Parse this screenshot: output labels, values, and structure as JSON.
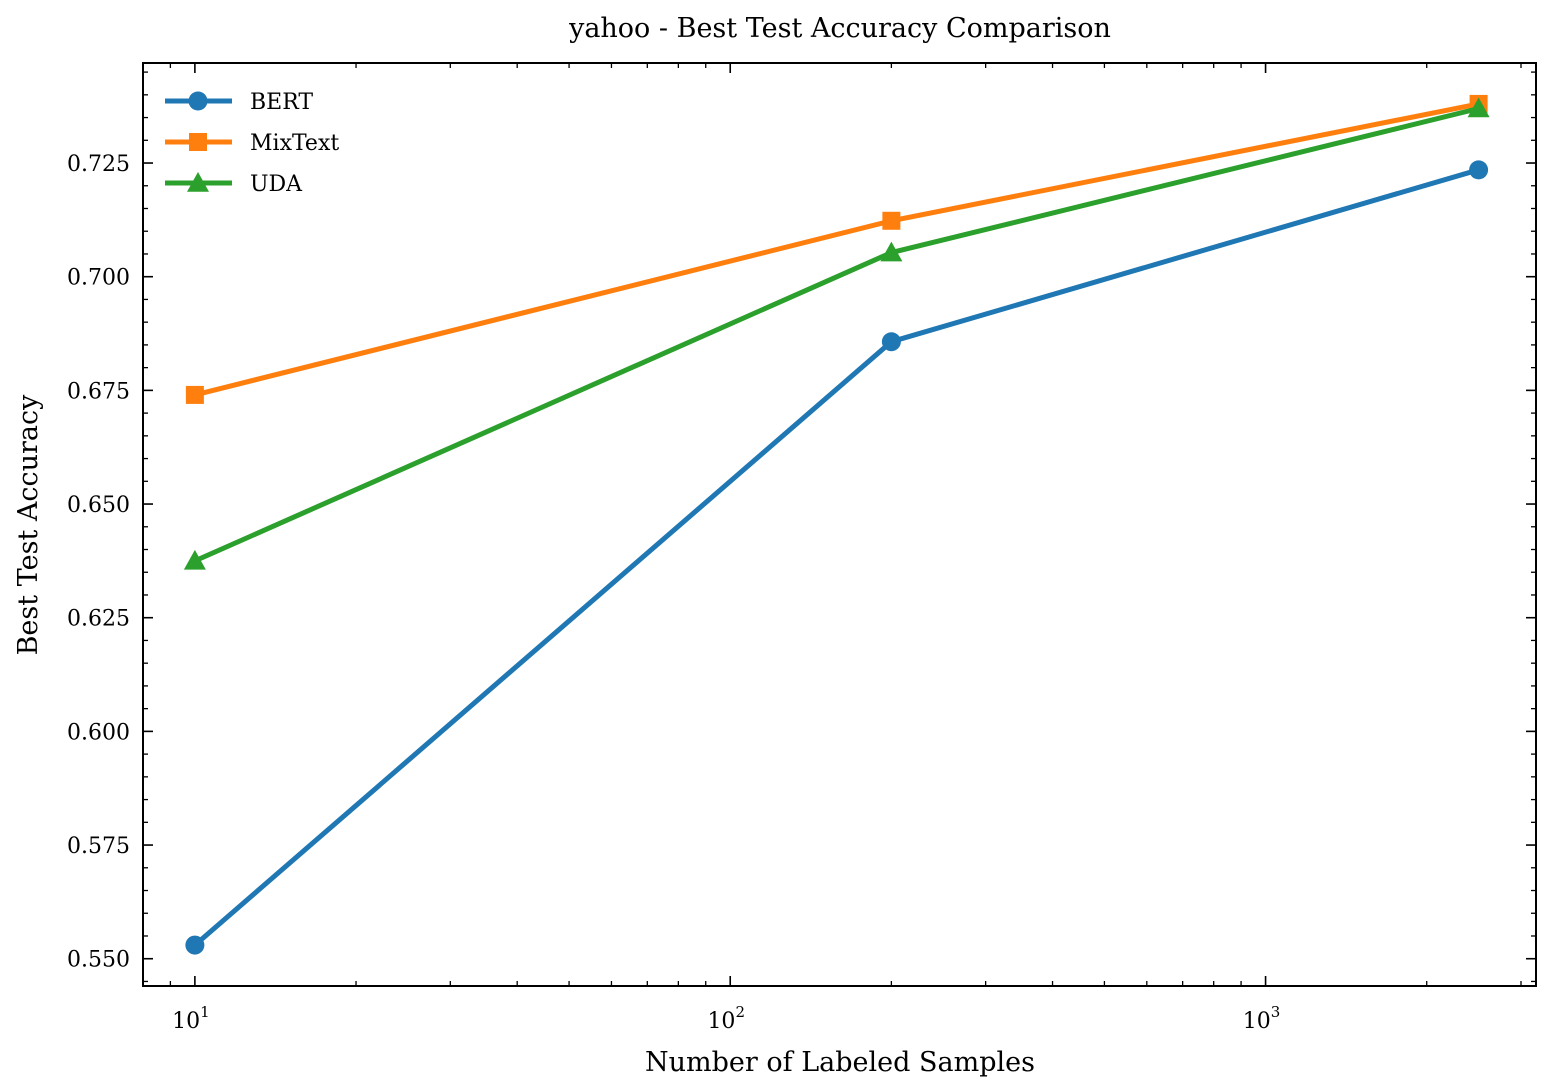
{
  "chart_data": {
    "type": "line",
    "title": "yahoo - Best Test Accuracy Comparison",
    "xlabel": "Number of Labeled Samples",
    "ylabel": "Best Test Accuracy",
    "xscale": "log",
    "xlim": [
      8,
      3200
    ],
    "ylim": [
      0.544,
      0.747
    ],
    "x": [
      10,
      200,
      2500
    ],
    "x_ticks": [
      10,
      100,
      1000
    ],
    "x_tick_labels": [
      {
        "base": "10",
        "exp": "1"
      },
      {
        "base": "10",
        "exp": "2"
      },
      {
        "base": "10",
        "exp": "3"
      }
    ],
    "y_ticks": [
      0.55,
      0.575,
      0.6,
      0.625,
      0.65,
      0.675,
      0.7,
      0.725
    ],
    "y_tick_labels": [
      "0.550",
      "0.575",
      "0.600",
      "0.625",
      "0.650",
      "0.675",
      "0.700",
      "0.725"
    ],
    "grid": false,
    "legend_position": "top-left",
    "series": [
      {
        "name": "BERT",
        "values": [
          0.553,
          0.6857,
          0.7235
        ],
        "color": "#1f77b4",
        "marker": "circle"
      },
      {
        "name": "MixText",
        "values": [
          0.674,
          0.7123,
          0.738
        ],
        "color": "#ff7f0e",
        "marker": "square"
      },
      {
        "name": "UDA",
        "values": [
          0.6375,
          0.7053,
          0.737
        ],
        "color": "#2ca02c",
        "marker": "triangle"
      }
    ]
  }
}
